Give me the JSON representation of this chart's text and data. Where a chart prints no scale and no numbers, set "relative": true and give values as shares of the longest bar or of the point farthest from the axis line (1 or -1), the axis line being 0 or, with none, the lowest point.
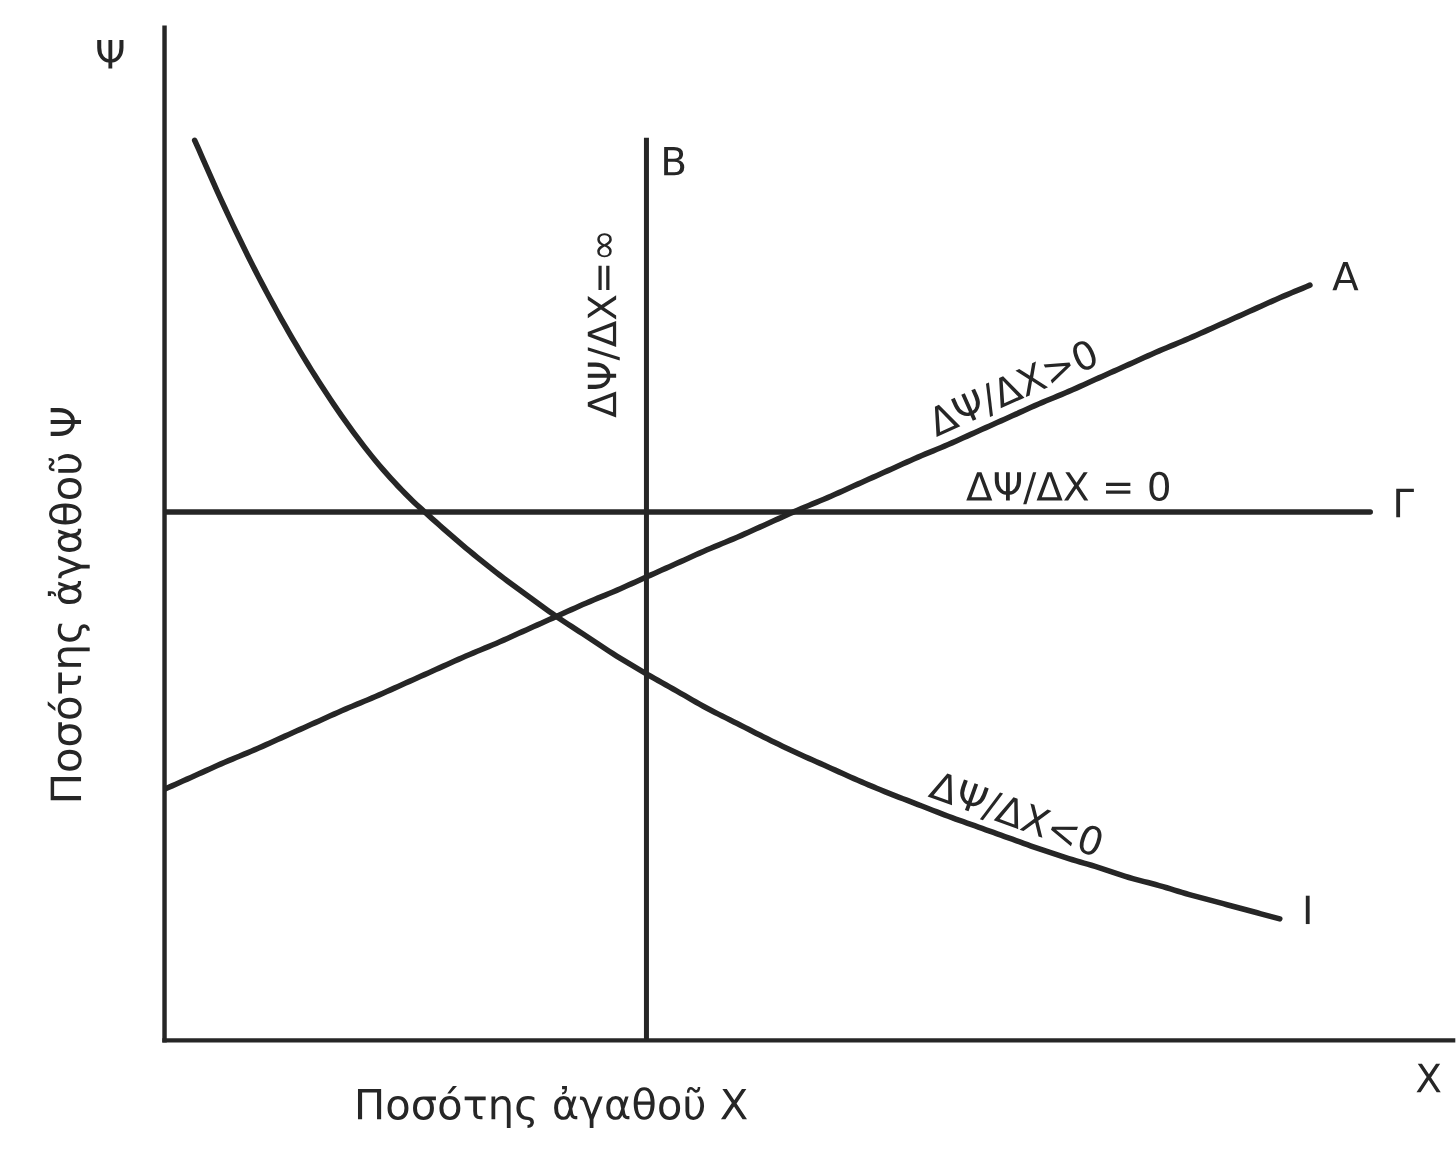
{
  "chart_data": {
    "type": "line",
    "relative": true,
    "xlabel": "Ποσότης ἀγαθοῦ X",
    "ylabel": "Ποσότης ἀγαθοῦ Ψ",
    "categories": [
      null,
      null,
      null,
      null,
      null,
      null,
      null,
      null,
      null,
      null,
      null,
      null,
      null,
      null,
      null,
      null,
      null,
      null,
      null,
      null,
      null,
      null,
      null,
      null,
      null,
      null,
      null,
      null,
      null,
      null,
      null,
      null,
      null,
      null,
      null,
      null,
      null,
      null,
      null,
      null,
      null,
      null,
      null
    ],
    "series": [
      {
        "name": "A",
        "color": "#262626",
        "values": [
          0.279,
          0.294,
          0.309,
          0.323,
          0.338,
          0.353,
          0.368,
          0.382,
          0.397,
          0.412,
          0.427,
          0.441,
          0.456,
          0.471,
          0.486,
          0.5,
          0.515,
          0.53,
          0.545,
          0.559,
          0.574,
          0.589,
          0.603,
          0.618,
          0.633,
          0.648,
          0.662,
          0.677,
          0.692,
          0.707,
          0.721,
          0.736,
          0.751,
          0.766,
          0.78,
          0.795,
          0.81,
          0.825,
          0.839,
          null,
          null,
          null,
          null
        ]
      },
      {
        "name": "Γ",
        "color": "#262626",
        "values": [
          0.587,
          0.587,
          0.587,
          0.587,
          0.587,
          0.587,
          0.587,
          0.587,
          0.587,
          0.587,
          0.587,
          0.587,
          0.587,
          0.587,
          0.587,
          0.587,
          0.587,
          0.587,
          0.587,
          0.587,
          0.587,
          0.587,
          0.587,
          0.587,
          0.587,
          0.587,
          0.587,
          0.587,
          0.587,
          0.587,
          0.587,
          0.587,
          0.587,
          0.587,
          0.587,
          0.587,
          0.587,
          0.587,
          0.587,
          0.587,
          0.587,
          null,
          null
        ]
      },
      {
        "name": "I",
        "color": "#262626",
        "values": [
          null,
          1.0,
          0.925,
          0.856,
          0.794,
          0.738,
          0.688,
          0.644,
          0.607,
          0.576,
          0.547,
          0.52,
          0.495,
          0.471,
          0.449,
          0.427,
          0.407,
          0.388,
          0.369,
          0.352,
          0.335,
          0.319,
          0.304,
          0.289,
          0.275,
          0.262,
          0.249,
          0.237,
          0.225,
          0.213,
          0.202,
          0.192,
          0.181,
          0.172,
          0.162,
          0.153,
          0.144,
          0.135,
          null,
          null,
          null,
          null,
          null
        ]
      }
    ],
    "annotations": [
      "Ψ",
      "X",
      "B",
      "ΔΨ/ΔX=∞",
      "ΔΨ/ΔX>0",
      "ΔΨ/ΔX = 0",
      "ΔΨ/ΔX<0"
    ]
  }
}
